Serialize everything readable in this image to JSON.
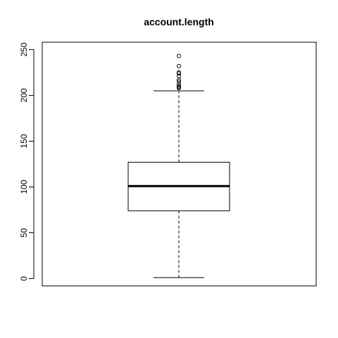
{
  "chart_data": {
    "type": "box",
    "title": "account.length",
    "xlabel": "",
    "ylabel": "",
    "ylim": [
      -8,
      258
    ],
    "yticks": [
      0,
      50,
      100,
      150,
      200,
      250
    ],
    "ytick_labels": [
      "0",
      "50",
      "100",
      "150",
      "200",
      "250"
    ],
    "grid": false,
    "box": {
      "min": 1,
      "q1": 74,
      "median": 101,
      "q3": 127,
      "whisker_low": 1,
      "whisker_high": 205,
      "outliers": [
        243,
        232,
        225,
        224,
        221,
        217,
        215,
        212,
        210,
        209,
        208
      ]
    },
    "colors": {
      "stroke": "#000000",
      "background": "#ffffff"
    }
  }
}
